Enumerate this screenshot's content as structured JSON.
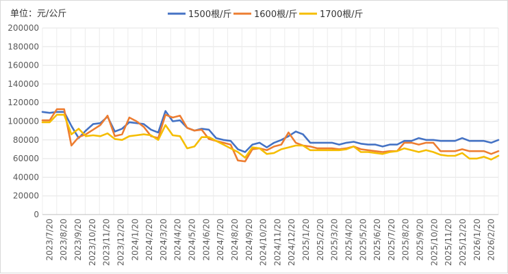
{
  "chart_data": {
    "type": "line",
    "unit_label": "单位：元/公斤",
    "ylim": [
      0,
      200000
    ],
    "y_ticks": [
      "0",
      "20000",
      "40000",
      "60000",
      "80000",
      "100000",
      "120000",
      "140000",
      "160000",
      "180000",
      "200000"
    ],
    "x_tick_labels": [
      "2023/7/20",
      "2023/8/20",
      "2023/9/20",
      "2023/10/20",
      "2023/11/20",
      "2023/12/20",
      "2024/1/20",
      "2024/2/20",
      "2024/3/20",
      "2024/4/20",
      "2024/5/20",
      "2024/6/20",
      "2024/7/20",
      "2024/8/20",
      "2024/9/20",
      "2024/10/20",
      "2024/11/20",
      "2024/12/20",
      "2025/1/20",
      "2025/2/20",
      "2025/3/20",
      "2025/4/20",
      "2025/5/20",
      "2025/6/20",
      "2025/7/20",
      "2025/8/20",
      "2025/9/20",
      "2025/10/20",
      "2025/11/20",
      "2025/12/20",
      "2026/1/20",
      "2026/2/20"
    ],
    "grid": true,
    "legend_position": "top",
    "series": [
      {
        "name": "1500根/斤",
        "color": "#4472C4",
        "values": [
          110000,
          109000,
          110000,
          110000,
          95000,
          82000,
          90000,
          97000,
          98000,
          105000,
          89000,
          92000,
          99000,
          98000,
          97000,
          91000,
          88000,
          111000,
          100000,
          101000,
          93000,
          90000,
          92000,
          91000,
          82000,
          80000,
          79000,
          70000,
          67000,
          75000,
          77000,
          72000,
          77000,
          80000,
          84000,
          89000,
          86000,
          77000,
          77000,
          77000,
          77000,
          75000,
          77000,
          78000,
          76000,
          75000,
          75000,
          73000,
          75000,
          75000,
          79000,
          79000,
          82000,
          80000,
          80000,
          79000,
          79000,
          79000,
          82000,
          79000,
          79000,
          79000,
          77000,
          80000
        ]
      },
      {
        "name": "1600根/斤",
        "color": "#ED7D31",
        "values": [
          101000,
          101000,
          113000,
          113000,
          74000,
          83000,
          86000,
          91000,
          96000,
          106000,
          84000,
          86000,
          104000,
          100000,
          94000,
          84000,
          82000,
          107000,
          104000,
          106000,
          93000,
          90000,
          91000,
          81000,
          79000,
          77000,
          75000,
          58000,
          57000,
          70000,
          71000,
          69000,
          73000,
          75000,
          88000,
          77000,
          74000,
          73000,
          71000,
          71000,
          71000,
          70000,
          71000,
          73000,
          70000,
          69000,
          68000,
          67000,
          68000,
          68000,
          77000,
          77000,
          75000,
          77000,
          77000,
          68000,
          68000,
          68000,
          70000,
          68000,
          68000,
          68000,
          65000,
          68000
        ]
      },
      {
        "name": "1700根/斤",
        "color": "#F5BD00",
        "values": [
          99000,
          99000,
          107000,
          107000,
          86000,
          92000,
          84000,
          85000,
          84000,
          87000,
          81000,
          80000,
          84000,
          85000,
          86000,
          85000,
          80000,
          96000,
          85000,
          84000,
          71000,
          73000,
          83000,
          83000,
          79000,
          75000,
          71000,
          67000,
          61000,
          72000,
          71000,
          65000,
          66000,
          70000,
          72000,
          74000,
          74000,
          69000,
          69000,
          69000,
          69000,
          69000,
          70000,
          73000,
          67000,
          67000,
          66000,
          65000,
          67000,
          68000,
          71000,
          69000,
          67000,
          69000,
          67000,
          64000,
          63000,
          63000,
          66000,
          60000,
          60000,
          62000,
          59000,
          63000
        ]
      }
    ]
  }
}
